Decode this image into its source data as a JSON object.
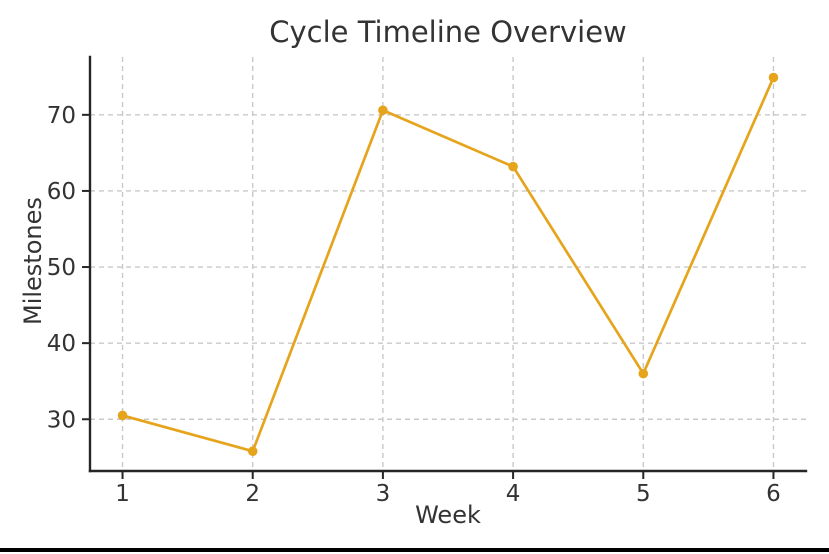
{
  "page": {
    "background": "#ffffff",
    "bottom_bar_color": "#000000"
  },
  "chart_data": {
    "type": "line",
    "title": "Cycle Timeline Overview",
    "xlabel": "Week",
    "ylabel": "Milestones",
    "x": [
      1,
      2,
      3,
      4,
      5,
      6
    ],
    "y": [
      30.5,
      25.8,
      70.6,
      63.2,
      36.0,
      74.9
    ],
    "series_name": "Milestones",
    "xticks": [
      1,
      2,
      3,
      4,
      5,
      6
    ],
    "yticks": [
      30,
      40,
      50,
      60,
      70
    ],
    "xlim": [
      0.75,
      6.25
    ],
    "ylim": [
      23.2,
      77.6
    ],
    "grid": true,
    "grid_style": "dashed",
    "legend": "none",
    "marker": "circle",
    "line_color": "#E6A41C",
    "text_color": "#333333",
    "spine_color": "#262626",
    "grid_color": "#c9c9c9"
  }
}
